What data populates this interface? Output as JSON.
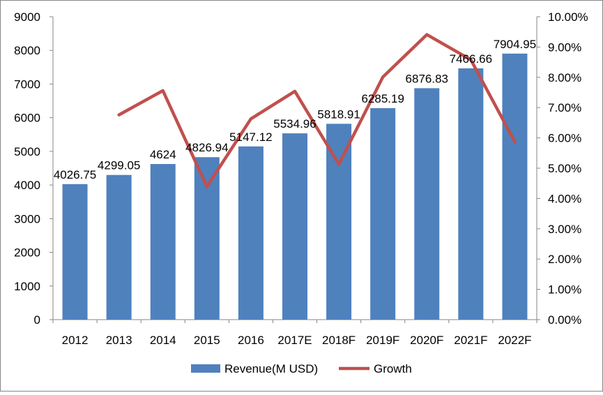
{
  "chart_data": {
    "type": "bar",
    "categories": [
      "2012",
      "2013",
      "2014",
      "2015",
      "2016",
      "2017E",
      "2018F",
      "2019F",
      "2020F",
      "2021F",
      "2022F"
    ],
    "series": [
      {
        "name": "Revenue(M USD)",
        "type": "bar",
        "axis": "left",
        "color": "#4f81bd",
        "values": [
          4026.75,
          4299.05,
          4624,
          4826.94,
          5147.12,
          5534.96,
          5818.91,
          6285.19,
          6876.83,
          7466.66,
          7904.95
        ],
        "labels": [
          "4026.75",
          "4299.05",
          "4624",
          "4826.94",
          "5147.12",
          "5534.96",
          "5818.91",
          "6285.19",
          "6876.83",
          "7466.66",
          "7904.95"
        ]
      },
      {
        "name": "Growth",
        "type": "line",
        "axis": "right",
        "color": "#c0504d",
        "values": [
          null,
          6.76,
          7.56,
          4.39,
          6.63,
          7.54,
          5.13,
          8.01,
          9.41,
          8.58,
          5.87
        ]
      }
    ],
    "y_left": {
      "ylim": [
        0,
        9000
      ],
      "ticks": [
        "0",
        "1000",
        "2000",
        "3000",
        "4000",
        "5000",
        "6000",
        "7000",
        "8000",
        "9000"
      ]
    },
    "y_right": {
      "ylim": [
        0,
        10
      ],
      "ticks": [
        "0.00%",
        "1.00%",
        "2.00%",
        "3.00%",
        "4.00%",
        "5.00%",
        "6.00%",
        "7.00%",
        "8.00%",
        "9.00%",
        "10.00%"
      ]
    },
    "legend": {
      "position": "bottom",
      "items": [
        "Revenue(M USD)",
        "Growth"
      ]
    },
    "grid": false,
    "title": "",
    "xlabel": "",
    "ylabel": ""
  }
}
